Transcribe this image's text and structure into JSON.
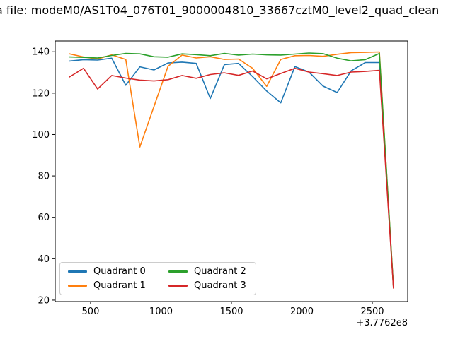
{
  "figure": {
    "title": "a file: modeM0/AS1T04_076T01_9000004810_33667cztM0_level2_quad_clean"
  },
  "chart_data": {
    "type": "line",
    "title": "a file: modeM0/AS1T04_076T01_9000004810_33667cztM0_level2_quad_clean",
    "xlabel": "",
    "ylabel": "",
    "x_offset_label": "+3.7762e8",
    "xlim": [
      249,
      2751
    ],
    "ylim": [
      19.3,
      145.2
    ],
    "x_ticks": [
      500,
      1000,
      1500,
      2000,
      2500
    ],
    "y_ticks": [
      20,
      40,
      60,
      80,
      100,
      120,
      140
    ],
    "grid": false,
    "legend_position": "lower left",
    "legend_columns": 2,
    "x": [
      350,
      450,
      550,
      650,
      750,
      850,
      950,
      1050,
      1150,
      1250,
      1350,
      1450,
      1550,
      1650,
      1750,
      1850,
      1950,
      2050,
      2150,
      2250,
      2350,
      2450,
      2550,
      2650
    ],
    "series": [
      {
        "name": "Quadrant 0",
        "color": "#1f77b4",
        "values": [
          135.5,
          136.2,
          136.0,
          136.9,
          123.8,
          132.7,
          131.2,
          134.6,
          135.0,
          134.4,
          117.4,
          133.8,
          134.4,
          128.0,
          121.0,
          115.3,
          132.8,
          130.2,
          123.4,
          120.3,
          130.8,
          134.8,
          134.8,
          26.0
        ]
      },
      {
        "name": "Quadrant 1",
        "color": "#ff7f0e",
        "values": [
          139.0,
          137.5,
          136.5,
          138.5,
          136.3,
          94.0,
          113.5,
          133.0,
          138.4,
          137.0,
          137.6,
          136.3,
          136.5,
          132.0,
          123.3,
          136.3,
          138.1,
          138.2,
          137.8,
          138.8,
          139.6,
          139.7,
          139.9,
          26.0
        ]
      },
      {
        "name": "Quadrant 2",
        "color": "#2ca02c",
        "values": [
          137.5,
          137.3,
          137.0,
          138.2,
          139.2,
          139.0,
          137.6,
          137.4,
          139.0,
          138.6,
          138.1,
          139.2,
          138.4,
          138.9,
          138.5,
          138.4,
          138.9,
          139.4,
          139.1,
          136.9,
          135.6,
          136.2,
          139.2,
          26.5
        ]
      },
      {
        "name": "Quadrant 3",
        "color": "#d62728",
        "values": [
          127.8,
          132.0,
          122.0,
          128.5,
          127.3,
          126.3,
          125.9,
          126.5,
          128.5,
          127.2,
          129.0,
          129.8,
          128.6,
          130.7,
          126.9,
          129.5,
          132.0,
          130.2,
          129.4,
          128.5,
          130.2,
          130.5,
          131.0,
          25.8
        ]
      }
    ]
  }
}
